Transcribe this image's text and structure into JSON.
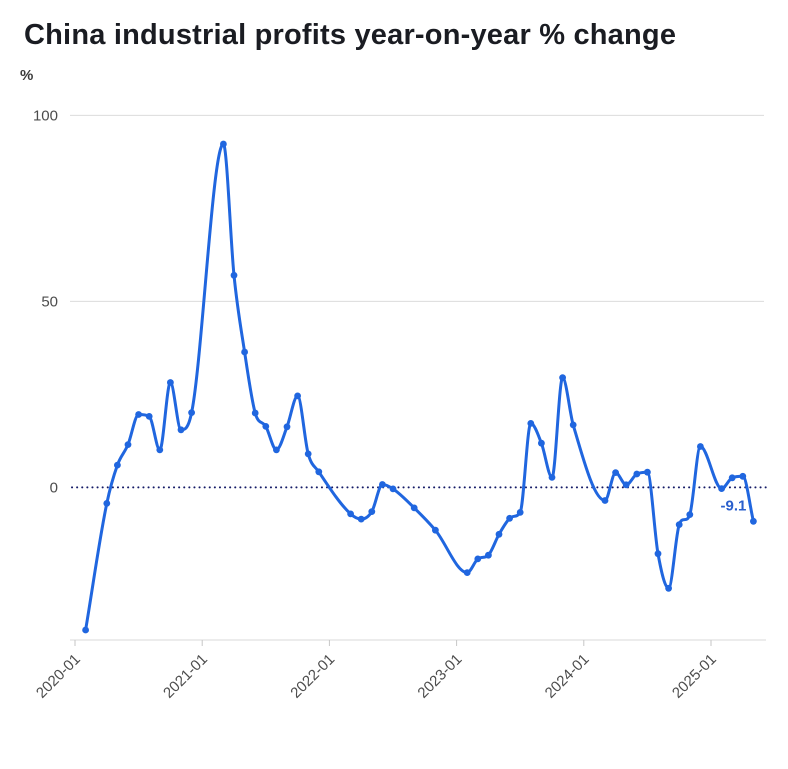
{
  "header": {
    "title": "China industrial profits year-on-year % change"
  },
  "chart_data": {
    "type": "line",
    "title": "China industrial profits year-on-year % change",
    "xlabel": "",
    "ylabel": "%",
    "grid": "horizontal",
    "legend": "none",
    "y_ticks": [
      0,
      50,
      100
    ],
    "ylim": [
      -41,
      106
    ],
    "x_ticks": [
      "2020-01",
      "2021-01",
      "2022-01",
      "2023-01",
      "2024-01",
      "2025-01"
    ],
    "xlim": [
      "2020-01",
      "2025-06"
    ],
    "zero_line": {
      "value": 0,
      "style": "dotted",
      "color": "#141a66"
    },
    "annotation": {
      "text": "-9.1"
    },
    "colors": {
      "line": "#2066df",
      "marker": "#2066df",
      "grid": "#dcdcdc",
      "axis_line": "#d9d9d9",
      "tick": "#c6c6c6",
      "axis_text": "#4c4c4c",
      "ylabel_text": "#3b3b3b",
      "annotation_text": "#2a5fcc",
      "title_text": "#1a1c22"
    },
    "series": [
      {
        "name": "Industrial profits year-on-year % change",
        "points": [
          [
            "2020-02",
            -38.3
          ],
          [
            "2020-04",
            -4.3
          ],
          [
            "2020-05",
            6.0
          ],
          [
            "2020-06",
            11.5
          ],
          [
            "2020-07",
            19.6
          ],
          [
            "2020-08",
            19.1
          ],
          [
            "2020-09",
            10.1
          ],
          [
            "2020-10",
            28.2
          ],
          [
            "2020-11",
            15.5
          ],
          [
            "2020-12",
            20.1
          ],
          [
            "2021-03",
            92.3
          ],
          [
            "2021-04",
            57.0
          ],
          [
            "2021-05",
            36.4
          ],
          [
            "2021-06",
            20.0
          ],
          [
            "2021-07",
            16.4
          ],
          [
            "2021-08",
            10.1
          ],
          [
            "2021-09",
            16.3
          ],
          [
            "2021-10",
            24.6
          ],
          [
            "2021-11",
            9.0
          ],
          [
            "2021-12",
            4.2
          ],
          [
            "2022-03",
            -7.1
          ],
          [
            "2022-04",
            -8.5
          ],
          [
            "2022-05",
            -6.5
          ],
          [
            "2022-06",
            0.8
          ],
          [
            "2022-07",
            -0.4
          ],
          [
            "2022-09",
            -5.5
          ],
          [
            "2022-11",
            -11.5
          ],
          [
            "2023-02",
            -22.9
          ],
          [
            "2023-03",
            -19.2
          ],
          [
            "2023-04",
            -18.2
          ],
          [
            "2023-05",
            -12.6
          ],
          [
            "2023-06",
            -8.3
          ],
          [
            "2023-07",
            -6.7
          ],
          [
            "2023-08",
            17.2
          ],
          [
            "2023-09",
            11.9
          ],
          [
            "2023-10",
            2.7
          ],
          [
            "2023-11",
            29.5
          ],
          [
            "2023-12",
            16.8
          ],
          [
            "2024-03",
            -3.5
          ],
          [
            "2024-04",
            4.0
          ],
          [
            "2024-05",
            0.7
          ],
          [
            "2024-06",
            3.6
          ],
          [
            "2024-07",
            4.1
          ],
          [
            "2024-08",
            -17.8
          ],
          [
            "2024-09",
            -27.1
          ],
          [
            "2024-10",
            -10.0
          ],
          [
            "2024-11",
            -7.3
          ],
          [
            "2024-12",
            11.0
          ],
          [
            "2025-02",
            -0.3
          ],
          [
            "2025-03",
            2.6
          ],
          [
            "2025-04",
            3.0
          ],
          [
            "2025-05",
            -9.1
          ]
        ]
      }
    ]
  }
}
